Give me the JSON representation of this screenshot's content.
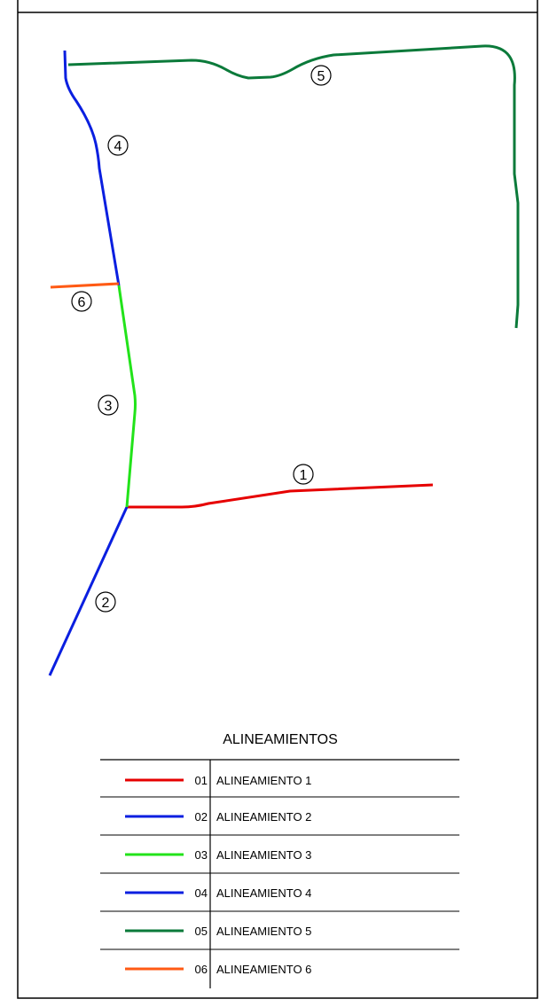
{
  "map": {
    "labels": [
      "1",
      "2",
      "3",
      "4",
      "5",
      "6"
    ]
  },
  "legend": {
    "title": "ALINEAMIENTOS",
    "rows": [
      {
        "code": "01",
        "name": "ALINEAMIENTO 1",
        "color": "#e60000"
      },
      {
        "code": "02",
        "name": "ALINEAMIENTO 2",
        "color": "#0a1fe0"
      },
      {
        "code": "03",
        "name": "ALINEAMIENTO 3",
        "color": "#22e31a"
      },
      {
        "code": "04",
        "name": "ALINEAMIENTO 4",
        "color": "#0a1fe0"
      },
      {
        "code": "05",
        "name": "ALINEAMIENTO 5",
        "color": "#0b7a3a"
      },
      {
        "code": "06",
        "name": "ALINEAMIENTO 6",
        "color": "#ff5a14"
      }
    ]
  }
}
